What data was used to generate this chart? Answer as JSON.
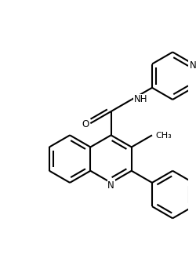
{
  "background": "#ffffff",
  "lw": 1.5,
  "fs": 8.5,
  "xlim": [
    -3.2,
    3.5
  ],
  "ylim": [
    -3.8,
    3.8
  ]
}
